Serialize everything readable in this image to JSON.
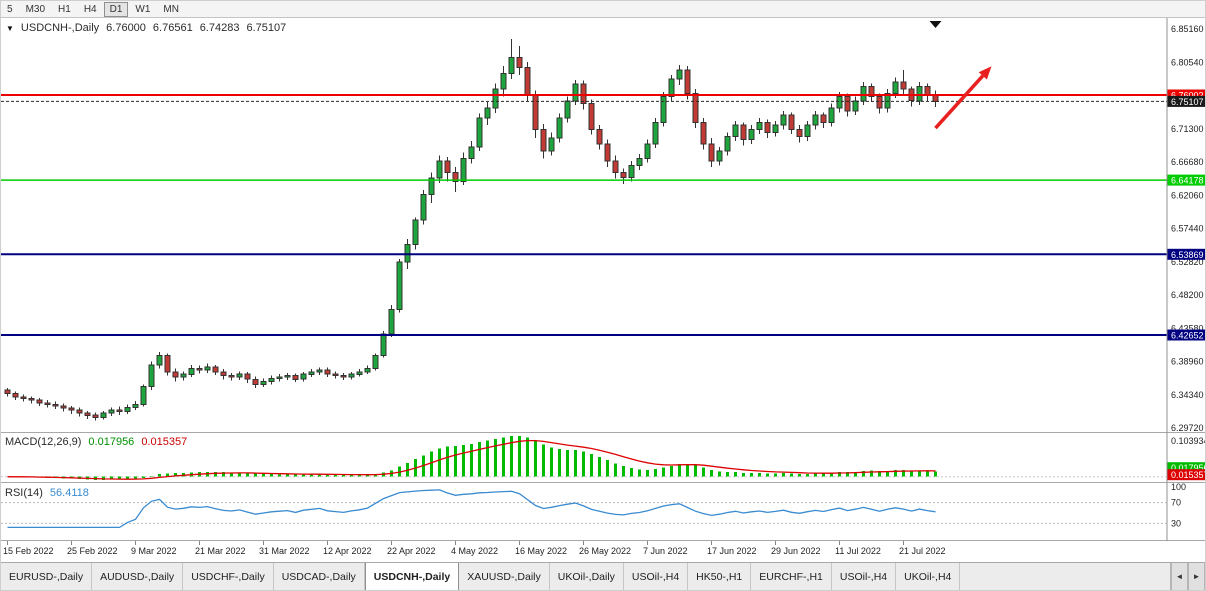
{
  "toolbar": {
    "timeframes": [
      {
        "label": "5",
        "active": false
      },
      {
        "label": "M30",
        "active": false
      },
      {
        "label": "H1",
        "active": false
      },
      {
        "label": "H4",
        "active": false
      },
      {
        "label": "D1",
        "active": true
      },
      {
        "label": "W1",
        "active": false
      },
      {
        "label": "MN",
        "active": false
      }
    ]
  },
  "chart": {
    "title": {
      "collapse_icon": "▼",
      "symbol": "USDCNH-,Daily",
      "open": "6.76000",
      "high": "6.76561",
      "low": "6.74283",
      "close": "6.75107"
    }
  },
  "macd": {
    "label": "MACD(12,26,9)",
    "value_main": "0.017956",
    "value_signal": "0.015357",
    "axis_max": "0.103934",
    "axis_min": "-0.008297",
    "histogram_color": "#00bb00",
    "signal_color": "#dd0000"
  },
  "rsi": {
    "label": "RSI(14)",
    "value": "56.4118",
    "levels": [
      "100",
      "70",
      "30"
    ],
    "line_color": "#3a8bd0"
  },
  "tabbar": {
    "scroll_left_icon": "◄",
    "scroll_right_icon": "►",
    "tabs": [
      {
        "label": "EURUSD-,Daily",
        "active": false
      },
      {
        "label": "AUDUSD-,Daily",
        "active": false
      },
      {
        "label": "USDCHF-,Daily",
        "active": false
      },
      {
        "label": "USDCAD-,Daily",
        "active": false
      },
      {
        "label": "USDCNH-,Daily",
        "active": true
      },
      {
        "label": "XAUUSD-,Daily",
        "active": false
      },
      {
        "label": "UKOil-,Daily",
        "active": false
      },
      {
        "label": "USOil-,H4",
        "active": false
      },
      {
        "label": "HK50-,H1",
        "active": false
      },
      {
        "label": "EURCHF-,H1",
        "active": false
      },
      {
        "label": "USOil-,H4",
        "active": false
      },
      {
        "label": "UKOil-,H4",
        "active": false
      }
    ]
  },
  "chart_data": {
    "type": "candlestick",
    "symbol": "USDCNH-",
    "timeframe": "Daily",
    "last_ohlc": {
      "open": 6.76,
      "high": 6.76561,
      "low": 6.74283,
      "close": 6.75107
    },
    "price_axis": {
      "ticks": [
        "6.85160",
        "6.80540",
        "6.75920",
        "6.71300",
        "6.66680",
        "6.62060",
        "6.57440",
        "6.52820",
        "6.48200",
        "6.43580",
        "6.38960",
        "6.34340",
        "6.29720"
      ],
      "top_price": 6.8656,
      "bottom_price": 6.2917
    },
    "x_labels": [
      {
        "label": "15 Feb 2022",
        "index": 0
      },
      {
        "label": "25 Feb 2022",
        "index": 8
      },
      {
        "label": "9 Mar 2022",
        "index": 16
      },
      {
        "label": "21 Mar 2022",
        "index": 24
      },
      {
        "label": "31 Mar 2022",
        "index": 32
      },
      {
        "label": "12 Apr 2022",
        "index": 40
      },
      {
        "label": "22 Apr 2022",
        "index": 48
      },
      {
        "label": "4 May 2022",
        "index": 56
      },
      {
        "label": "16 May 2022",
        "index": 64
      },
      {
        "label": "26 May 2022",
        "index": 72
      },
      {
        "label": "7 Jun 2022",
        "index": 80
      },
      {
        "label": "17 Jun 2022",
        "index": 88
      },
      {
        "label": "29 Jun 2022",
        "index": 96
      },
      {
        "label": "11 Jul 2022",
        "index": 104
      },
      {
        "label": "21 Jul 2022",
        "index": 112
      }
    ],
    "levels": [
      {
        "name": "resistance-level",
        "price": 6.76002,
        "label": "6.76002",
        "color": "#ee0000",
        "width": 2,
        "dash": ""
      },
      {
        "name": "bid-price",
        "price": 6.75107,
        "label": "6.75107",
        "color": "#2a2a2a",
        "badge": "#1a1a1a",
        "width": 1,
        "dash": "3,2"
      },
      {
        "name": "support-level-green",
        "price": 6.64178,
        "label": "6.64178",
        "color": "#00cc00",
        "width": 1.5,
        "dash": ""
      },
      {
        "name": "support-level-navy-upper",
        "price": 6.53869,
        "label": "6.53869",
        "color": "#000080",
        "width": 2,
        "dash": ""
      },
      {
        "name": "support-level-navy-lower",
        "price": 6.42652,
        "label": "6.42652",
        "color": "#000080",
        "width": 2,
        "dash": ""
      }
    ],
    "annotations": [
      {
        "type": "arrow",
        "bar_from": 116,
        "price_from": 6.714,
        "bar_to": 123,
        "price_to": 6.8,
        "color": "#e82020"
      }
    ],
    "shift_marker_bar": 116,
    "colors": {
      "up": "#1ea53c",
      "down": "#c23a34",
      "outline": "#333333",
      "bg": "#ffffff"
    },
    "indicators": {
      "macd_params": [
        12,
        26,
        9
      ],
      "rsi_period": 14
    },
    "candles": [
      [
        6.35,
        6.353,
        6.341,
        6.345
      ],
      [
        6.345,
        6.348,
        6.336,
        6.34
      ],
      [
        6.34,
        6.344,
        6.334,
        6.338
      ],
      [
        6.338,
        6.341,
        6.331,
        6.336
      ],
      [
        6.336,
        6.339,
        6.328,
        6.332
      ],
      [
        6.332,
        6.336,
        6.326,
        6.33
      ],
      [
        6.33,
        6.334,
        6.324,
        6.328
      ],
      [
        6.328,
        6.331,
        6.32,
        6.325
      ],
      [
        6.325,
        6.328,
        6.317,
        6.322
      ],
      [
        6.322,
        6.326,
        6.313,
        6.318
      ],
      [
        6.318,
        6.321,
        6.31,
        6.315
      ],
      [
        6.315,
        6.319,
        6.308,
        6.312
      ],
      [
        6.312,
        6.321,
        6.309,
        6.318
      ],
      [
        6.318,
        6.326,
        6.314,
        6.322
      ],
      [
        6.322,
        6.327,
        6.315,
        6.32
      ],
      [
        6.32,
        6.33,
        6.317,
        6.326
      ],
      [
        6.326,
        6.335,
        6.322,
        6.33
      ],
      [
        6.33,
        6.358,
        6.327,
        6.355
      ],
      [
        6.355,
        6.39,
        6.35,
        6.385
      ],
      [
        6.385,
        6.403,
        6.38,
        6.398
      ],
      [
        6.398,
        6.401,
        6.37,
        6.375
      ],
      [
        6.375,
        6.38,
        6.362,
        6.368
      ],
      [
        6.368,
        6.376,
        6.363,
        6.372
      ],
      [
        6.372,
        6.385,
        6.368,
        6.38
      ],
      [
        6.38,
        6.384,
        6.373,
        6.378
      ],
      [
        6.378,
        6.387,
        6.374,
        6.382
      ],
      [
        6.382,
        6.385,
        6.371,
        6.375
      ],
      [
        6.375,
        6.379,
        6.365,
        6.37
      ],
      [
        6.37,
        6.374,
        6.363,
        6.368
      ],
      [
        6.368,
        6.376,
        6.364,
        6.372
      ],
      [
        6.372,
        6.375,
        6.36,
        6.365
      ],
      [
        6.365,
        6.369,
        6.353,
        6.358
      ],
      [
        6.358,
        6.366,
        6.354,
        6.362
      ],
      [
        6.362,
        6.37,
        6.358,
        6.366
      ],
      [
        6.366,
        6.372,
        6.362,
        6.368
      ],
      [
        6.368,
        6.374,
        6.364,
        6.37
      ],
      [
        6.37,
        6.373,
        6.361,
        6.365
      ],
      [
        6.365,
        6.375,
        6.362,
        6.372
      ],
      [
        6.372,
        6.379,
        6.368,
        6.375
      ],
      [
        6.375,
        6.381,
        6.371,
        6.378
      ],
      [
        6.378,
        6.381,
        6.368,
        6.372
      ],
      [
        6.372,
        6.376,
        6.366,
        6.37
      ],
      [
        6.37,
        6.374,
        6.364,
        6.368
      ],
      [
        6.368,
        6.375,
        6.365,
        6.372
      ],
      [
        6.372,
        6.379,
        6.369,
        6.375
      ],
      [
        6.375,
        6.384,
        6.372,
        6.38
      ],
      [
        6.38,
        6.401,
        6.377,
        6.398
      ],
      [
        6.398,
        6.432,
        6.395,
        6.428
      ],
      [
        6.428,
        6.468,
        6.424,
        6.462
      ],
      [
        6.462,
        6.532,
        6.458,
        6.528
      ],
      [
        6.528,
        6.56,
        6.518,
        6.552
      ],
      [
        6.552,
        6.59,
        6.545,
        6.586
      ],
      [
        6.586,
        6.628,
        6.58,
        6.622
      ],
      [
        6.622,
        6.652,
        6.61,
        6.645
      ],
      [
        6.645,
        6.676,
        6.638,
        6.668
      ],
      [
        6.668,
        6.674,
        6.64,
        6.652
      ],
      [
        6.652,
        6.66,
        6.625,
        6.64
      ],
      [
        6.64,
        6.68,
        6.635,
        6.672
      ],
      [
        6.672,
        6.696,
        6.665,
        6.688
      ],
      [
        6.688,
        6.734,
        6.682,
        6.728
      ],
      [
        6.728,
        6.75,
        6.718,
        6.742
      ],
      [
        6.742,
        6.776,
        6.735,
        6.768
      ],
      [
        6.768,
        6.8,
        6.758,
        6.79
      ],
      [
        6.79,
        6.838,
        6.782,
        6.812
      ],
      [
        6.812,
        6.828,
        6.788,
        6.798
      ],
      [
        6.798,
        6.806,
        6.752,
        6.76
      ],
      [
        6.76,
        6.766,
        6.7,
        6.712
      ],
      [
        6.712,
        6.72,
        6.672,
        6.682
      ],
      [
        6.682,
        6.708,
        6.676,
        6.7
      ],
      [
        6.7,
        6.734,
        6.694,
        6.728
      ],
      [
        6.728,
        6.758,
        6.722,
        6.752
      ],
      [
        6.752,
        6.781,
        6.746,
        6.775
      ],
      [
        6.775,
        6.78,
        6.74,
        6.748
      ],
      [
        6.748,
        6.754,
        6.705,
        6.712
      ],
      [
        6.712,
        6.718,
        6.684,
        6.692
      ],
      [
        6.692,
        6.698,
        6.66,
        6.668
      ],
      [
        6.668,
        6.676,
        6.644,
        6.652
      ],
      [
        6.652,
        6.658,
        6.636,
        6.645
      ],
      [
        6.645,
        6.668,
        6.64,
        6.662
      ],
      [
        6.662,
        6.678,
        6.656,
        6.672
      ],
      [
        6.672,
        6.698,
        6.666,
        6.692
      ],
      [
        6.692,
        6.728,
        6.686,
        6.722
      ],
      [
        6.722,
        6.764,
        6.716,
        6.758
      ],
      [
        6.758,
        6.788,
        6.752,
        6.782
      ],
      [
        6.782,
        6.802,
        6.774,
        6.795
      ],
      [
        6.795,
        6.8,
        6.754,
        6.762
      ],
      [
        6.762,
        6.768,
        6.714,
        6.722
      ],
      [
        6.722,
        6.728,
        6.684,
        6.692
      ],
      [
        6.692,
        6.7,
        6.66,
        6.668
      ],
      [
        6.668,
        6.688,
        6.662,
        6.682
      ],
      [
        6.682,
        6.708,
        6.676,
        6.702
      ],
      [
        6.702,
        6.724,
        6.696,
        6.718
      ],
      [
        6.718,
        6.722,
        6.69,
        6.698
      ],
      [
        6.698,
        6.718,
        6.692,
        6.712
      ],
      [
        6.712,
        6.728,
        6.706,
        6.722
      ],
      [
        6.722,
        6.726,
        6.7,
        6.708
      ],
      [
        6.708,
        6.724,
        6.702,
        6.718
      ],
      [
        6.718,
        6.738,
        6.712,
        6.732
      ],
      [
        6.732,
        6.736,
        6.706,
        6.712
      ],
      [
        6.712,
        6.718,
        6.694,
        6.702
      ],
      [
        6.702,
        6.724,
        6.696,
        6.718
      ],
      [
        6.718,
        6.738,
        6.712,
        6.732
      ],
      [
        6.732,
        6.736,
        6.714,
        6.722
      ],
      [
        6.722,
        6.748,
        6.716,
        6.742
      ],
      [
        6.742,
        6.764,
        6.736,
        6.758
      ],
      [
        6.758,
        6.762,
        6.73,
        6.738
      ],
      [
        6.738,
        6.758,
        6.732,
        6.752
      ],
      [
        6.752,
        6.778,
        6.746,
        6.772
      ],
      [
        6.772,
        6.776,
        6.75,
        6.758
      ],
      [
        6.758,
        6.762,
        6.734,
        6.742
      ],
      [
        6.742,
        6.768,
        6.736,
        6.762
      ],
      [
        6.762,
        6.784,
        6.756,
        6.778
      ],
      [
        6.778,
        6.795,
        6.76,
        6.768
      ],
      [
        6.768,
        6.772,
        6.744,
        6.752
      ],
      [
        6.752,
        6.778,
        6.746,
        6.772
      ],
      [
        6.772,
        6.776,
        6.752,
        6.76
      ],
      [
        6.76,
        6.766,
        6.743,
        6.751
      ]
    ]
  }
}
